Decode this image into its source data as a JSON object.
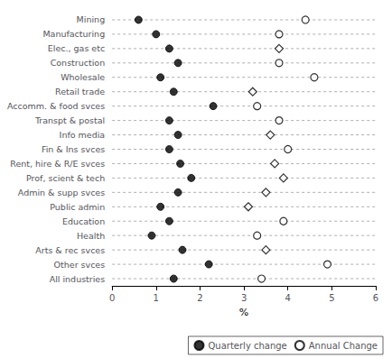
{
  "chart_data": {
    "type": "scatter",
    "orientation": "horizontal",
    "categories": [
      "Mining",
      "Manufacturing",
      "Elec., gas etc",
      "Construction",
      "Wholesale",
      "Retail trade",
      "Accomm. & food svces",
      "Transpt & postal",
      "Info media",
      "Fin & Ins svces",
      "Rent, hire & R/E svces",
      "Prof, scient & tech",
      "Admin & supp svces",
      "Public admin",
      "Education",
      "Health",
      "Arts & rec svces",
      "Other svces",
      "All industries"
    ],
    "series": [
      {
        "name": "Quarterly change",
        "color": "#000000",
        "marker": "circle",
        "values": [
          0.6,
          1.0,
          1.3,
          1.5,
          1.1,
          1.4,
          2.3,
          1.3,
          1.5,
          1.3,
          1.55,
          1.8,
          1.5,
          1.1,
          1.3,
          0.9,
          1.6,
          2.2,
          1.4
        ]
      },
      {
        "name": "Annual Change",
        "color": "#000000",
        "marker": [
          "open_circle",
          "open_circle",
          "open_diamond",
          "open_circle",
          "open_circle",
          "open_diamond",
          "open_circle",
          "open_circle",
          "open_diamond",
          "open_circle",
          "open_diamond",
          "open_diamond",
          "open_diamond",
          "open_diamond",
          "open_circle",
          "open_circle",
          "open_diamond",
          "open_circle",
          "open_circle"
        ],
        "values": [
          4.4,
          3.8,
          3.8,
          3.8,
          4.6,
          3.2,
          3.3,
          3.8,
          3.6,
          4.0,
          3.7,
          3.9,
          3.5,
          3.1,
          3.9,
          3.3,
          3.5,
          4.9,
          3.4
        ]
      }
    ],
    "xlabel": "%",
    "xlim": [
      0,
      6
    ],
    "xticks": [
      0,
      1,
      2,
      3,
      4,
      5,
      6
    ],
    "grid": true,
    "legend": "lower right"
  }
}
